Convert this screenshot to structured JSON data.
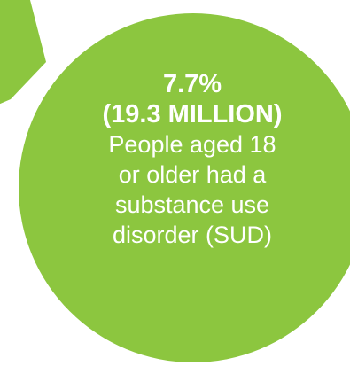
{
  "infographic": {
    "percentage": "7.7%",
    "count": "(19.3 MILLION)",
    "description_lines": [
      "People aged 18",
      "or older had a",
      "substance use",
      "disorder (SUD)"
    ]
  },
  "colors": {
    "main_circle": "#8cc63f",
    "side_circle": "#1d6484",
    "text": "#ffffff",
    "background": "#ffffff"
  }
}
